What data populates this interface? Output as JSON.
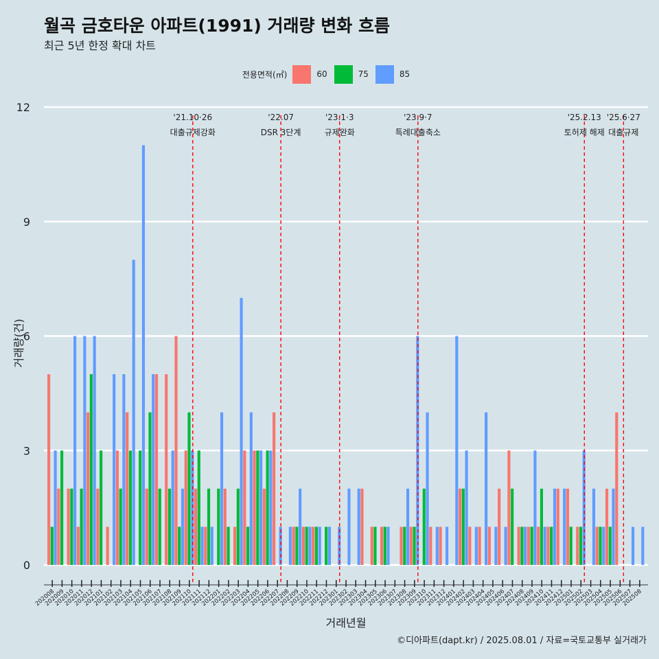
{
  "title": "월곡 금호타운 아파트(1991) 거래량 변화 흐름",
  "subtitle": "최근 5년 한정 확대 차트",
  "caption": "©디아파트(dapt.kr) / 2025.08.01 / 자료=국토교통부 실거래가",
  "legend_title": "전용면적(㎡)",
  "chart_data": {
    "type": "bar",
    "xlabel": "거래년월",
    "ylabel": "거래량(건)",
    "ylim": [
      0,
      12
    ],
    "yticks": [
      0,
      3,
      6,
      9,
      12
    ],
    "grid": true,
    "legend_position": "top",
    "categories": [
      "202008",
      "202009",
      "202010",
      "202011",
      "202012",
      "202101",
      "202102",
      "202103",
      "202104",
      "202105",
      "202106",
      "202107",
      "202108",
      "202109",
      "202110",
      "202111",
      "202112",
      "202201",
      "202202",
      "202203",
      "202204",
      "202205",
      "202206",
      "202207",
      "202208",
      "202209",
      "202210",
      "202211",
      "202212",
      "202301",
      "202302",
      "202303",
      "202304",
      "202305",
      "202306",
      "202307",
      "202308",
      "202309",
      "202310",
      "202311",
      "202312",
      "202401",
      "202402",
      "202403",
      "202404",
      "202405",
      "202406",
      "202407",
      "202408",
      "202409",
      "202410",
      "202411",
      "202412",
      "202501",
      "202502",
      "202503",
      "202504",
      "202505",
      "202506",
      "202507",
      "202508"
    ],
    "series": [
      {
        "name": "60",
        "color": "#f8766d",
        "values": [
          5,
          2,
          2,
          1,
          4,
          2,
          1,
          3,
          4,
          0,
          2,
          5,
          5,
          6,
          3,
          2,
          1,
          0,
          2,
          1,
          3,
          3,
          2,
          4,
          0,
          1,
          1,
          1,
          0,
          0,
          0,
          0,
          2,
          1,
          1,
          0,
          1,
          1,
          0,
          1,
          1,
          0,
          2,
          1,
          1,
          1,
          2,
          3,
          1,
          1,
          1,
          1,
          2,
          2,
          1,
          0,
          1,
          2,
          4,
          0,
          0
        ]
      },
      {
        "name": "75",
        "color": "#00ba38",
        "values": [
          1,
          3,
          2,
          2,
          5,
          3,
          0,
          2,
          3,
          3,
          4,
          2,
          2,
          1,
          4,
          3,
          2,
          2,
          1,
          2,
          1,
          3,
          3,
          0,
          0,
          1,
          1,
          1,
          1,
          0,
          0,
          0,
          0,
          1,
          1,
          0,
          1,
          1,
          2,
          0,
          0,
          0,
          2,
          0,
          0,
          0,
          0,
          2,
          1,
          1,
          2,
          1,
          0,
          1,
          1,
          0,
          1,
          1,
          0,
          0,
          0
        ]
      },
      {
        "name": "85",
        "color": "#619cff",
        "values": [
          3,
          0,
          6,
          6,
          6,
          0,
          5,
          5,
          8,
          11,
          5,
          0,
          3,
          2,
          3,
          1,
          1,
          4,
          0,
          7,
          4,
          3,
          3,
          1,
          1,
          2,
          1,
          1,
          1,
          1,
          2,
          2,
          0,
          0,
          1,
          0,
          2,
          6,
          4,
          1,
          1,
          6,
          3,
          1,
          4,
          1,
          1,
          0,
          1,
          3,
          1,
          2,
          2,
          0,
          3,
          2,
          1,
          2,
          0,
          1,
          1
        ]
      }
    ],
    "events": [
      {
        "date": "'21.10·26",
        "text": "대출규제강화",
        "after": "202110"
      },
      {
        "date": "'22.07",
        "text": "DSR 3단계",
        "after": "202207"
      },
      {
        "date": "'23.1·3",
        "text": "규제완화",
        "after": "202301"
      },
      {
        "date": "'23.9·7",
        "text": "특례대출축소",
        "after": "202309"
      },
      {
        "date": "'25.2.13",
        "text": "토허제 해제",
        "after": "202502"
      },
      {
        "date": "'25.6·27",
        "text": "대출규제",
        "after": "202506"
      }
    ]
  }
}
